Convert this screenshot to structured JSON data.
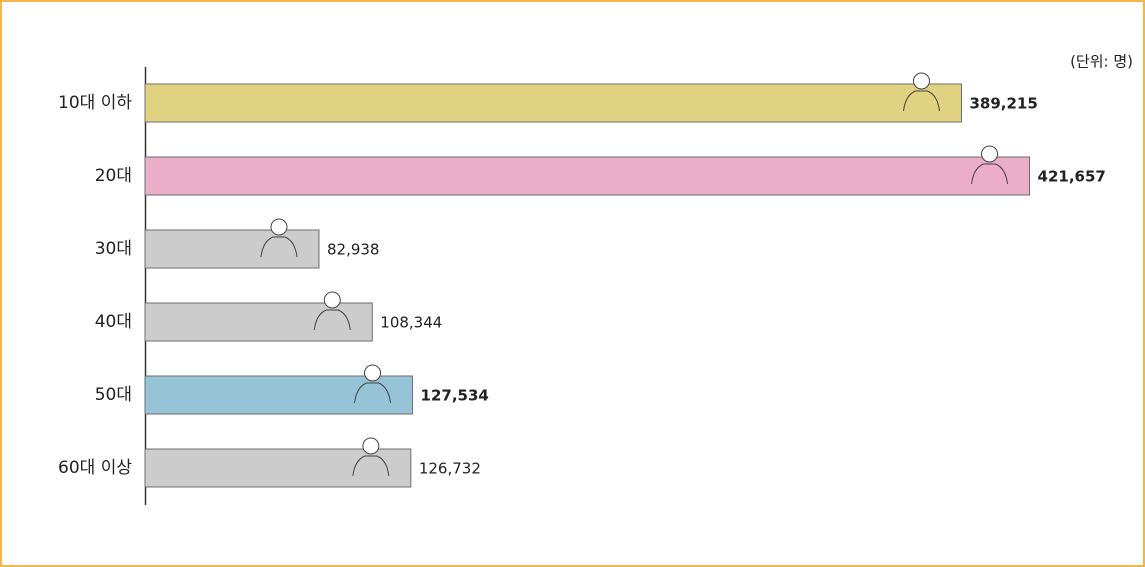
{
  "chart_data": {
    "type": "bar",
    "orientation": "horizontal",
    "unit_label": "(단위: 명)",
    "categories": [
      "10대 이하",
      "20대",
      "30대",
      "40대",
      "50대",
      "60대 이상"
    ],
    "values": [
      389215,
      421657,
      82938,
      108344,
      127534,
      126732
    ],
    "value_labels": [
      "389,215",
      "421,657",
      "82,938",
      "108,344",
      "127,534",
      "126,732"
    ],
    "colors": [
      "#e0d281",
      "#ebadc8",
      "#cccccc",
      "#cccccc",
      "#96c3d6",
      "#cccccc"
    ],
    "bold_labels": [
      true,
      true,
      false,
      false,
      true,
      false
    ],
    "xlim": [
      0,
      450000
    ]
  }
}
